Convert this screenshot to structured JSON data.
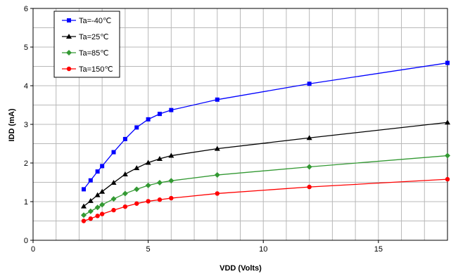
{
  "chart_data": {
    "type": "line",
    "title": "",
    "xlabel": "VDD (Volts)",
    "ylabel": "IDD (mA)",
    "xlim": [
      0,
      18
    ],
    "ylim": [
      0,
      6
    ],
    "x_ticks": [
      "0",
      "5",
      "10",
      "15"
    ],
    "y_ticks": [
      "0",
      "1",
      "2",
      "3",
      "4",
      "5",
      "6"
    ],
    "grid": true,
    "legend_position": "top-left",
    "series": [
      {
        "name": "Ta=-40℃",
        "color": "#0000ff",
        "marker": "square",
        "x": [
          2.2,
          2.5,
          2.8,
          3.0,
          3.5,
          4.0,
          4.5,
          5.0,
          5.5,
          6.0,
          8.0,
          12.0,
          18.0
        ],
        "y": [
          1.32,
          1.55,
          1.78,
          1.92,
          2.28,
          2.62,
          2.92,
          3.13,
          3.27,
          3.37,
          3.64,
          4.05,
          4.59
        ]
      },
      {
        "name": "Ta=25℃",
        "color": "#000000",
        "marker": "triangle",
        "x": [
          2.2,
          2.5,
          2.8,
          3.0,
          3.5,
          4.0,
          4.5,
          5.0,
          5.5,
          6.0,
          8.0,
          12.0,
          18.0
        ],
        "y": [
          0.88,
          1.02,
          1.17,
          1.26,
          1.49,
          1.71,
          1.87,
          2.01,
          2.11,
          2.19,
          2.37,
          2.65,
          3.05
        ]
      },
      {
        "name": "Ta=85℃",
        "color": "#339933",
        "marker": "diamond",
        "x": [
          2.2,
          2.5,
          2.8,
          3.0,
          3.5,
          4.0,
          4.5,
          5.0,
          5.5,
          6.0,
          8.0,
          12.0,
          18.0
        ],
        "y": [
          0.65,
          0.75,
          0.85,
          0.92,
          1.07,
          1.21,
          1.32,
          1.42,
          1.49,
          1.54,
          1.69,
          1.9,
          2.19
        ]
      },
      {
        "name": "Ta=150℃",
        "color": "#ff0000",
        "marker": "circle",
        "x": [
          2.2,
          2.5,
          2.8,
          3.0,
          3.5,
          4.0,
          4.5,
          5.0,
          5.5,
          6.0,
          8.0,
          12.0,
          18.0
        ],
        "y": [
          0.5,
          0.56,
          0.63,
          0.68,
          0.78,
          0.87,
          0.95,
          1.01,
          1.05,
          1.09,
          1.21,
          1.38,
          1.58
        ]
      }
    ]
  }
}
